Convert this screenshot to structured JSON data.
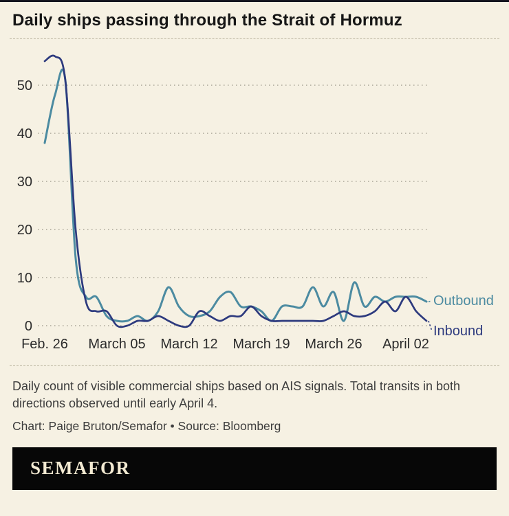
{
  "chart_data": {
    "type": "line",
    "title": "Daily ships passing through the Strait of Hormuz",
    "x": [
      "Feb 26",
      "Feb 27",
      "Feb 28",
      "Mar 1",
      "Mar 2",
      "Mar 3",
      "Mar 4",
      "Mar 5",
      "Mar 6",
      "Mar 7",
      "Mar 8",
      "Mar 9",
      "Mar 10",
      "Mar 11",
      "Mar 12",
      "Mar 13",
      "Mar 14",
      "Mar 15",
      "Mar 16",
      "Mar 17",
      "Mar 18",
      "Mar 19",
      "Mar 20",
      "Mar 21",
      "Mar 22",
      "Mar 23",
      "Mar 24",
      "Mar 25",
      "Mar 26",
      "Mar 27",
      "Mar 28",
      "Mar 29",
      "Mar 30",
      "Mar 31",
      "Apr 1",
      "Apr 2",
      "Apr 3",
      "Apr 4"
    ],
    "x_tick_labels": [
      "Feb. 26",
      "March 05",
      "March 12",
      "March 19",
      "March 26",
      "April 02"
    ],
    "x_tick_indices": [
      0,
      7,
      14,
      21,
      28,
      35
    ],
    "yticks": [
      0,
      10,
      20,
      30,
      40,
      50
    ],
    "ylim": [
      0,
      57
    ],
    "grid": "dotted-horizontal",
    "legend_position": "end-labels-right",
    "series": [
      {
        "name": "Outbound",
        "color": "#4c8ba1",
        "values": [
          38,
          48,
          51,
          14,
          6,
          6,
          2,
          1,
          1,
          2,
          1,
          3,
          8,
          4,
          2,
          2,
          3,
          6,
          7,
          4,
          4,
          3,
          1,
          4,
          4,
          4,
          8,
          4,
          7,
          1,
          9,
          4,
          6,
          5,
          6,
          6,
          6,
          5
        ]
      },
      {
        "name": "Inbound",
        "color": "#2d3a7e",
        "values": [
          55,
          56,
          51,
          20,
          5,
          3,
          3,
          0,
          0,
          1,
          1,
          2,
          1,
          0,
          0,
          3,
          2,
          1,
          2,
          2,
          4,
          2,
          1,
          1,
          1,
          1,
          1,
          1,
          2,
          3,
          2,
          2,
          3,
          5,
          3,
          6,
          3,
          1
        ]
      }
    ]
  },
  "notes": {
    "caption": "Daily count of visible commercial ships based on AIS signals. Total transits in both directions observed until early April 4.",
    "credit": "Chart: Paige Bruton/Semafor • Source: Bloomberg"
  },
  "footer": {
    "logo": "SEMAFOR"
  }
}
